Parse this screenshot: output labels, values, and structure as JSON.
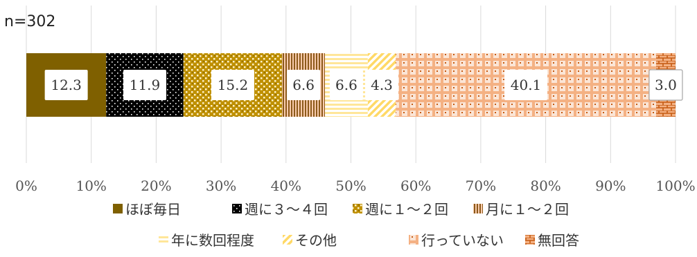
{
  "header": {
    "n_label": "n=302"
  },
  "colors": {
    "grid": "#d9d9d9",
    "label_box_border": "#a6a6a6"
  },
  "chart_data": {
    "type": "bar",
    "orientation": "horizontal",
    "stacked": "percent",
    "xlim": [
      0,
      100
    ],
    "ticks": [
      0,
      10,
      20,
      30,
      40,
      50,
      60,
      70,
      80,
      90,
      100
    ],
    "tick_labels": [
      "0%",
      "10%",
      "20%",
      "30%",
      "40%",
      "50%",
      "60%",
      "70%",
      "80%",
      "90%",
      "100%"
    ],
    "grid": true,
    "legend_position": "bottom",
    "series": [
      {
        "name": "ほぼ毎日",
        "value": 12.3,
        "label": "12.3",
        "color": "#7f6000",
        "pattern": "solid"
      },
      {
        "name": "週に３～４回",
        "value": 11.9,
        "label": "11.9",
        "color": "#000000",
        "pattern": "dots-black"
      },
      {
        "name": "週に１～２回",
        "value": 15.2,
        "label": "15.2",
        "color": "#bf9000",
        "pattern": "confetti"
      },
      {
        "name": "月に１～２回",
        "value": 6.6,
        "label": "6.6",
        "color": "#8c5a1a",
        "pattern": "vertical-lines"
      },
      {
        "name": "年に数回程度",
        "value": 6.6,
        "label": "6.6",
        "color": "#ffe699",
        "pattern": "horizontal-lines"
      },
      {
        "name": "その他",
        "value": 4.3,
        "label": "4.3",
        "color": "#ffd966",
        "pattern": "diagonal"
      },
      {
        "name": "行っていない",
        "value": 40.1,
        "label": "40.1",
        "color": "#f4b183",
        "pattern": "plaid"
      },
      {
        "name": "無回答",
        "value": 3.0,
        "label": "3.0",
        "color": "#c55a11",
        "pattern": "brick"
      }
    ]
  }
}
